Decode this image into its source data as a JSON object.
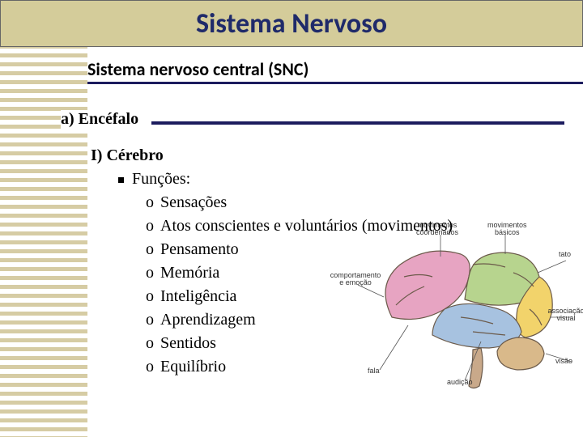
{
  "title": "Sistema Nervoso",
  "subtitle": "Sistema nervoso central (SNC)",
  "section_a": "a) Encéfalo",
  "cerebro": {
    "heading": "I) Cérebro",
    "functions_label": "Funções:",
    "items": [
      "Sensações",
      "Atos conscientes e voluntários (movimentos)",
      "Pensamento",
      "Memória",
      "Inteligência",
      "Aprendizagem",
      "Sentidos",
      "Equilíbrio"
    ]
  },
  "brain_diagram": {
    "colors": {
      "frontal": "#e7a4c2",
      "parietal": "#b7d48e",
      "occipital": "#f2d36b",
      "temporal": "#a7c2e0",
      "cerebellum": "#d9b98a",
      "stem": "#c9a98a",
      "outline": "#6b5a4a"
    },
    "labels": {
      "coord": "movimentos\ncoordenados",
      "basicos": "movimentos\nbásicos",
      "tato": "tato",
      "comport": "comportamento\ne emoção",
      "visual": "associação\nvisual",
      "visao": "visão",
      "fala": "fala",
      "audicao": "audição"
    }
  },
  "colors": {
    "title_bg": "#d4cc9a",
    "title_text": "#1f2a6a",
    "rule": "#1c1c5e",
    "stripe": "#d6cca4"
  }
}
